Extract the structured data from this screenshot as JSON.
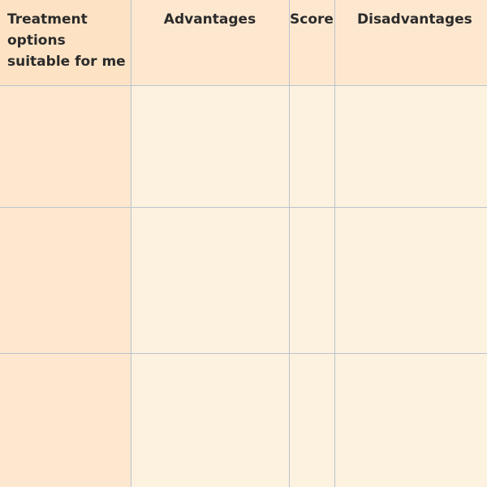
{
  "table": {
    "headers": [
      "Treatment options suitable for me",
      "Advantages",
      "Score",
      "Disadvantages"
    ],
    "rows": [
      [
        "",
        "",
        "",
        ""
      ],
      [
        "",
        "",
        "",
        ""
      ],
      [
        "",
        "",
        "",
        ""
      ]
    ]
  }
}
